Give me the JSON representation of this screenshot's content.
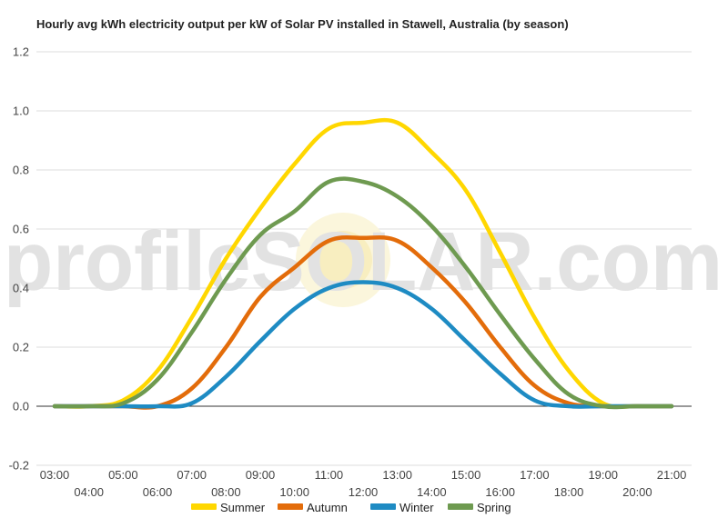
{
  "chart_data": {
    "type": "line",
    "title": "Hourly avg kWh electricity output per kW of Solar PV installed in Stawell, Australia (by season)",
    "xlabel": "",
    "ylabel": "",
    "ylim": [
      -0.2,
      1.2
    ],
    "yticks": [
      -0.2,
      0.0,
      0.2,
      0.4,
      0.6,
      0.8,
      1.0,
      1.2
    ],
    "ytick_labels": [
      "-0.2",
      "0.0",
      "0.2",
      "0.4",
      "0.6",
      "0.8",
      "1.0",
      "1.2"
    ],
    "x": [
      "03:00",
      "04:00",
      "05:00",
      "06:00",
      "07:00",
      "08:00",
      "09:00",
      "10:00",
      "11:00",
      "12:00",
      "13:00",
      "14:00",
      "15:00",
      "16:00",
      "17:00",
      "18:00",
      "19:00",
      "20:00",
      "21:00"
    ],
    "grid": true,
    "legend_position": "bottom",
    "watermark": "profileSOLAR.com",
    "series": [
      {
        "name": "Summer",
        "color": "#ffd700",
        "values": [
          0.0,
          0.0,
          0.02,
          0.12,
          0.3,
          0.5,
          0.67,
          0.82,
          0.94,
          0.96,
          0.96,
          0.86,
          0.73,
          0.52,
          0.3,
          0.12,
          0.01,
          0.0,
          0.0
        ]
      },
      {
        "name": "Autumn",
        "color": "#e36c0a",
        "values": [
          0.0,
          0.0,
          0.0,
          0.0,
          0.06,
          0.2,
          0.37,
          0.47,
          0.56,
          0.57,
          0.56,
          0.47,
          0.35,
          0.2,
          0.07,
          0.01,
          0.0,
          0.0,
          0.0
        ]
      },
      {
        "name": "Winter",
        "color": "#1e8bc3",
        "values": [
          0.0,
          0.0,
          0.0,
          0.0,
          0.01,
          0.1,
          0.22,
          0.33,
          0.4,
          0.42,
          0.4,
          0.33,
          0.22,
          0.11,
          0.02,
          0.0,
          0.0,
          0.0,
          0.0
        ]
      },
      {
        "name": "Spring",
        "color": "#6e9a50",
        "values": [
          0.0,
          0.0,
          0.01,
          0.09,
          0.25,
          0.43,
          0.58,
          0.66,
          0.76,
          0.76,
          0.71,
          0.61,
          0.47,
          0.31,
          0.16,
          0.04,
          0.0,
          0.0,
          0.0
        ]
      }
    ]
  }
}
